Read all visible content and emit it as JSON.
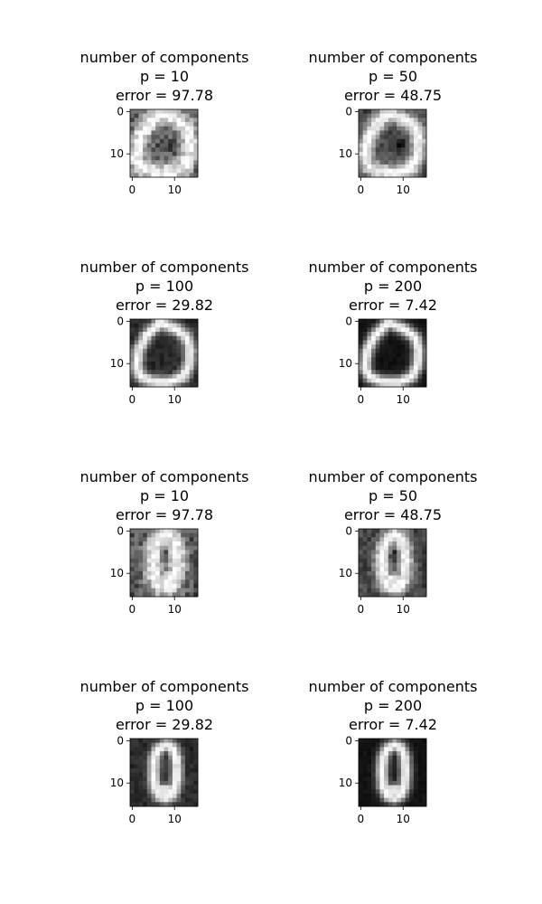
{
  "chart_data": [
    {
      "type": "heatmap",
      "title_lines": [
        "number of components",
        "p = 10",
        "error = 97.78"
      ],
      "xticks": [
        "0",
        "10"
      ],
      "yticks": [
        "0",
        "10"
      ],
      "digit": "a",
      "p": 10,
      "error": 97.78
    },
    {
      "type": "heatmap",
      "title_lines": [
        "number of components",
        "p = 50",
        "error = 48.75"
      ],
      "xticks": [
        "0",
        "10"
      ],
      "yticks": [
        "0",
        "10"
      ],
      "digit": "a",
      "p": 50,
      "error": 48.75
    },
    {
      "type": "heatmap",
      "title_lines": [
        "number of components",
        "p = 100",
        "error = 29.82"
      ],
      "xticks": [
        "0",
        "10"
      ],
      "yticks": [
        "0",
        "10"
      ],
      "digit": "a",
      "p": 100,
      "error": 29.82
    },
    {
      "type": "heatmap",
      "title_lines": [
        "number of components",
        "p = 200",
        "error = 7.42"
      ],
      "xticks": [
        "0",
        "10"
      ],
      "yticks": [
        "0",
        "10"
      ],
      "digit": "a",
      "p": 200,
      "error": 7.42
    },
    {
      "type": "heatmap",
      "title_lines": [
        "number of components",
        "p = 10",
        "error = 97.78"
      ],
      "xticks": [
        "0",
        "10"
      ],
      "yticks": [
        "0",
        "10"
      ],
      "digit": "b",
      "p": 10,
      "error": 97.78
    },
    {
      "type": "heatmap",
      "title_lines": [
        "number of components",
        "p = 50",
        "error = 48.75"
      ],
      "xticks": [
        "0",
        "10"
      ],
      "yticks": [
        "0",
        "10"
      ],
      "digit": "b",
      "p": 50,
      "error": 48.75
    },
    {
      "type": "heatmap",
      "title_lines": [
        "number of components",
        "p = 100",
        "error = 29.82"
      ],
      "xticks": [
        "0",
        "10"
      ],
      "yticks": [
        "0",
        "10"
      ],
      "digit": "b",
      "p": 100,
      "error": 29.82
    },
    {
      "type": "heatmap",
      "title_lines": [
        "number of components",
        "p = 200",
        "error = 7.42"
      ],
      "xticks": [
        "0",
        "10"
      ],
      "yticks": [
        "0",
        "10"
      ],
      "digit": "b",
      "p": 200,
      "error": 7.42
    }
  ]
}
